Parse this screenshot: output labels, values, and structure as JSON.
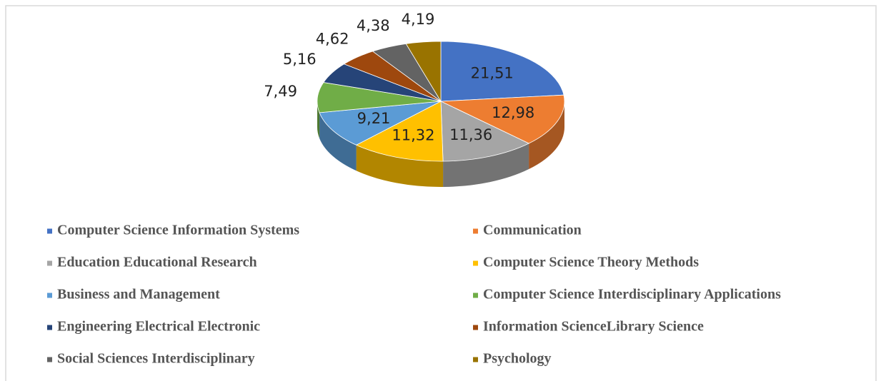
{
  "chart_data": {
    "type": "pie",
    "categories": [
      "Computer Science Information Systems",
      "Communication",
      "Education Educational Research",
      "Computer Science Theory Methods",
      "Business and Management",
      "Computer Science Interdisciplinary Applications",
      "Engineering Electrical Electronic",
      "Information ScienceLibrary Science",
      "Social Sciences Interdisciplinary",
      "Psychology"
    ],
    "values": [
      21.51,
      12.98,
      11.36,
      11.32,
      9.21,
      7.49,
      5.16,
      4.62,
      4.38,
      4.19
    ],
    "value_labels": [
      "21,51",
      "12,98",
      "11,36",
      "11,32",
      "9,21",
      "7,49",
      "5,16",
      "4,62",
      "4,38",
      "4,19"
    ],
    "colors": [
      "#4472c4",
      "#ed7d31",
      "#a5a5a5",
      "#ffc000",
      "#5b9bd5",
      "#70ad47",
      "#264478",
      "#9e480e",
      "#636363",
      "#997300"
    ]
  }
}
